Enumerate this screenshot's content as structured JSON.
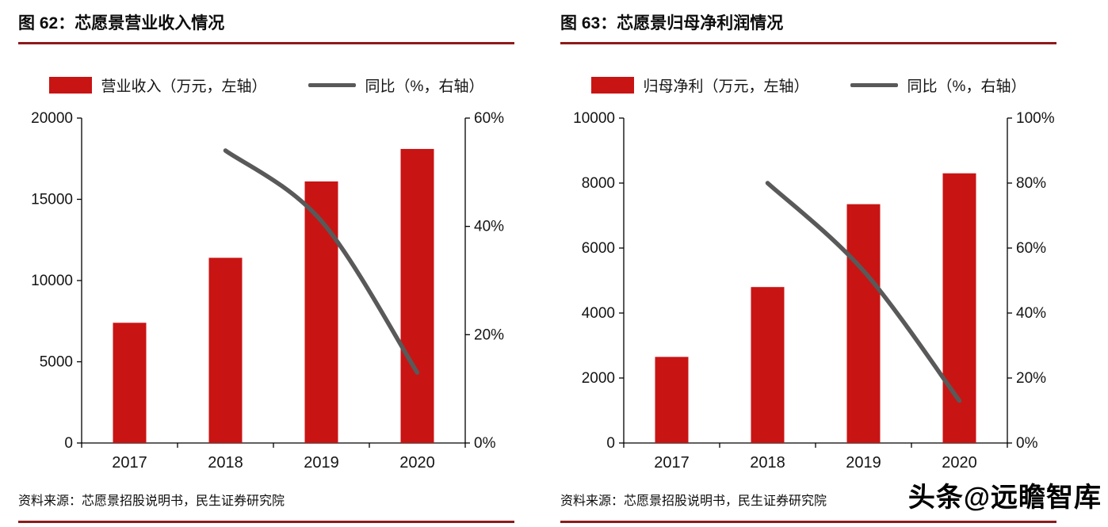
{
  "watermark": "头条@远瞻智库",
  "colors": {
    "bar": "#c91414",
    "line": "#595959",
    "divider": "#8e1b1b",
    "axis": "#000000",
    "text": "#141414"
  },
  "sources": [
    "资料来源：芯愿景招股说明书，民生证券研究院",
    "资料来源：芯愿景招股说明书，民生证券研究院"
  ],
  "chart_data": [
    {
      "type": "bar+line",
      "title": "图 62：芯愿景营业收入情况",
      "categories": [
        "2017",
        "2018",
        "2019",
        "2020"
      ],
      "series": [
        {
          "name": "营业收入（万元，左轴）",
          "type": "bar",
          "axis": "left",
          "color": "#c91414",
          "values": [
            7400,
            11400,
            16100,
            18100
          ]
        },
        {
          "name": "同比（%，右轴）",
          "type": "line",
          "axis": "right",
          "color": "#595959",
          "values": [
            null,
            54,
            41,
            13
          ]
        }
      ],
      "left_axis": {
        "min": 0,
        "max": 20000,
        "ticks": [
          0,
          5000,
          10000,
          15000,
          20000
        ]
      },
      "right_axis": {
        "min": 0,
        "max": 60,
        "ticks": [
          0,
          20,
          40,
          60
        ],
        "suffix": "%"
      },
      "grid": false,
      "legend_position": "top"
    },
    {
      "type": "bar+line",
      "title": "图 63：芯愿景归母净利润情况",
      "categories": [
        "2017",
        "2018",
        "2019",
        "2020"
      ],
      "series": [
        {
          "name": "归母净利（万元，左轴）",
          "type": "bar",
          "axis": "left",
          "color": "#c91414",
          "values": [
            2650,
            4800,
            7350,
            8300
          ]
        },
        {
          "name": "同比（%，右轴）",
          "type": "line",
          "axis": "right",
          "color": "#595959",
          "values": [
            null,
            80,
            53,
            13
          ]
        }
      ],
      "left_axis": {
        "min": 0,
        "max": 10000,
        "ticks": [
          0,
          2000,
          4000,
          6000,
          8000,
          10000
        ]
      },
      "right_axis": {
        "min": 0,
        "max": 100,
        "ticks": [
          0,
          20,
          40,
          60,
          80,
          100
        ],
        "suffix": "%"
      },
      "grid": false,
      "legend_position": "top"
    }
  ]
}
